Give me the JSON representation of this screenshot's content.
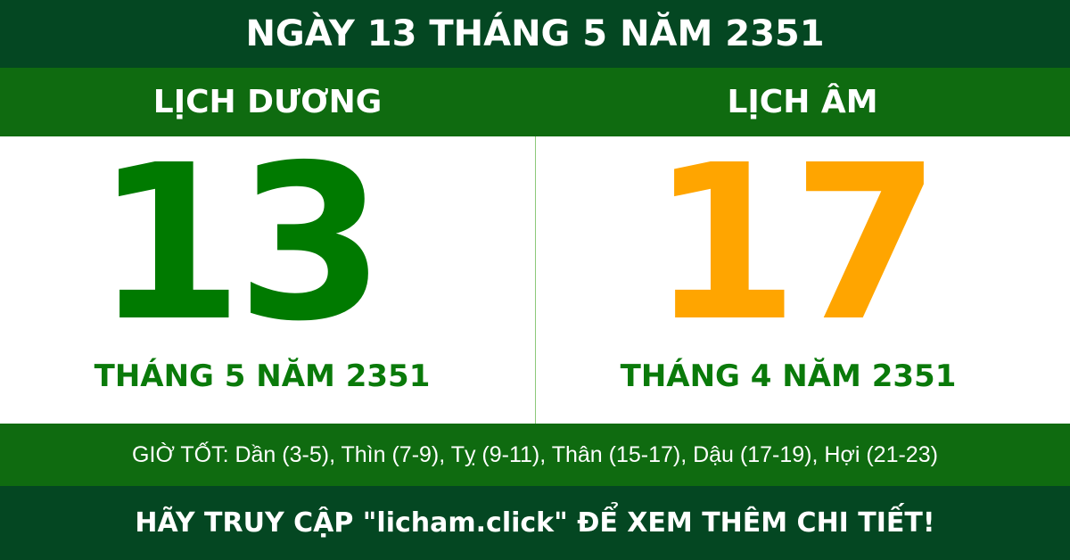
{
  "header": {
    "title": "NGÀY 13 THÁNG 5 NĂM 2351"
  },
  "solar": {
    "label": "LỊCH DƯƠNG",
    "day": "13",
    "month_year": "THÁNG 5 NĂM 2351",
    "color": "#007a00"
  },
  "lunar": {
    "label": "LỊCH ÂM",
    "day": "17",
    "month_year": "THÁNG 4 NĂM 2351",
    "color": "#ffa500"
  },
  "good_hours": "GIỜ TỐT: Dần (3-5), Thìn (7-9), Tỵ (9-11), Thân (15-17), Dậu (17-19), Hợi (21-23)",
  "footer": {
    "text": "HÃY TRUY CẬP \"licham.click\" ĐỂ XEM THÊM CHI TIẾT!"
  }
}
